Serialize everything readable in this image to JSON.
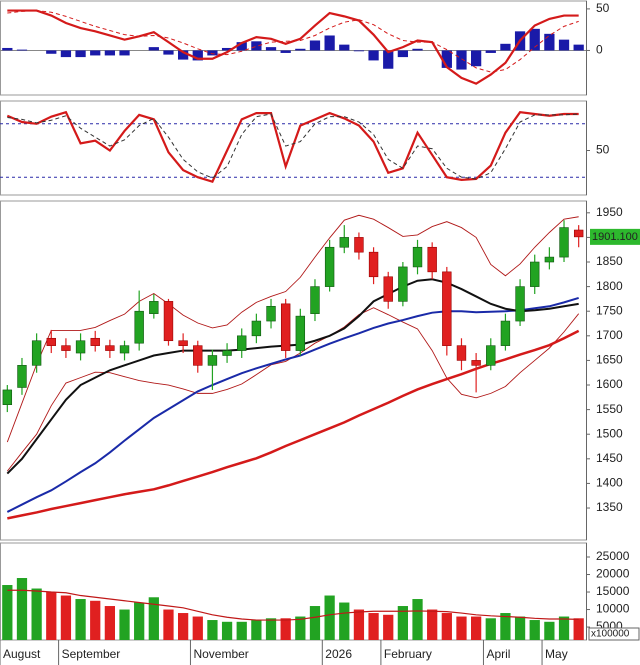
{
  "chart_data": [
    {
      "type": "macd",
      "ylim": [
        -53.6,
        59.5
      ],
      "yticks": [
        0,
        50
      ],
      "series": [
        {
          "color": "#d41a1a",
          "style": "solid",
          "values": [
            48,
            48,
            48,
            42,
            33,
            27,
            23,
            18,
            13,
            17,
            22,
            10,
            -2,
            -10,
            -10,
            -2,
            9,
            16,
            14,
            8,
            14,
            30,
            45,
            41,
            36,
            19,
            -2,
            4,
            12,
            10,
            -20,
            -33,
            -40,
            -29,
            -15,
            12,
            30,
            38,
            42,
            42
          ]
        },
        {
          "color": "#d41a1a",
          "style": "dashed",
          "values": [
            45,
            47,
            48,
            46,
            41,
            35,
            29,
            24,
            19,
            17,
            18,
            15,
            9,
            2,
            -4,
            -5,
            -1,
            5,
            10,
            11,
            12,
            18,
            27,
            34,
            37,
            31,
            20,
            12,
            10,
            10,
            1,
            -10,
            -21,
            -26,
            -23,
            -11,
            4,
            18,
            29,
            35
          ]
        }
      ],
      "histogram": {
        "color": "#1a1aa8",
        "values": [
          3,
          1,
          0,
          -4,
          -8,
          -8,
          -6,
          -6,
          -6,
          0,
          4,
          -5,
          -11,
          -12,
          -6,
          3,
          10,
          11,
          4,
          -3,
          2,
          12,
          18,
          7,
          -1,
          -12,
          -22,
          -8,
          2,
          0,
          -21,
          -23,
          -19,
          -3,
          8,
          23,
          26,
          20,
          13,
          7
        ]
      }
    },
    {
      "type": "line",
      "ylim": [
        0,
        105.6
      ],
      "yticks": [
        50
      ],
      "levels": [
        80,
        20
      ],
      "level_color": "#2a2aa8",
      "series": [
        {
          "color": "#d41a1a",
          "style": "solid",
          "values": [
            89,
            82,
            80,
            88,
            93,
            58,
            61,
            50,
            72,
            90,
            85,
            48,
            28,
            20,
            15,
            50,
            85,
            92,
            92,
            32,
            78,
            85,
            92,
            86,
            78,
            60,
            25,
            30,
            70,
            45,
            20,
            17,
            18,
            33,
            70,
            93,
            91,
            89,
            91,
            91
          ]
        },
        {
          "color": "#333333",
          "style": "dashed",
          "values": [
            87,
            85,
            81,
            84,
            89,
            75,
            65,
            55,
            62,
            78,
            86,
            65,
            40,
            26,
            19,
            32,
            68,
            88,
            91,
            55,
            60,
            80,
            88,
            88,
            82,
            68,
            40,
            30,
            55,
            52,
            30,
            20,
            18,
            25,
            52,
            82,
            90,
            90,
            90,
            91
          ]
        }
      ]
    },
    {
      "type": "candlestick",
      "ylim": [
        1285,
        1974
      ],
      "yticks": [
        1350,
        1400,
        1450,
        1500,
        1550,
        1600,
        1650,
        1700,
        1750,
        1800,
        1850,
        1900,
        1950
      ],
      "up_color": "#22a322",
      "down_color": "#e02020",
      "open": [
        1560,
        1595,
        1640,
        1695,
        1680,
        1665,
        1695,
        1680,
        1665,
        1685,
        1745,
        1770,
        1690,
        1680,
        1640,
        1660,
        1670,
        1700,
        1730,
        1765,
        1670,
        1745,
        1800,
        1880,
        1900,
        1870,
        1820,
        1770,
        1840,
        1880,
        1830,
        1680,
        1650,
        1640,
        1680,
        1730,
        1800,
        1850,
        1860,
        1915
      ],
      "high": [
        1600,
        1655,
        1705,
        1712,
        1695,
        1705,
        1710,
        1692,
        1690,
        1792,
        1785,
        1775,
        1705,
        1690,
        1672,
        1685,
        1715,
        1745,
        1775,
        1775,
        1755,
        1815,
        1895,
        1925,
        1910,
        1880,
        1830,
        1850,
        1895,
        1890,
        1840,
        1695,
        1665,
        1695,
        1745,
        1815,
        1865,
        1880,
        1935,
        1925
      ],
      "low": [
        1545,
        1580,
        1625,
        1665,
        1655,
        1650,
        1668,
        1655,
        1650,
        1670,
        1735,
        1680,
        1665,
        1625,
        1590,
        1645,
        1655,
        1685,
        1715,
        1655,
        1660,
        1730,
        1790,
        1868,
        1855,
        1805,
        1755,
        1760,
        1825,
        1815,
        1660,
        1630,
        1585,
        1630,
        1670,
        1720,
        1785,
        1835,
        1850,
        1880
      ],
      "close": [
        1590,
        1640,
        1690,
        1680,
        1670,
        1690,
        1680,
        1670,
        1680,
        1750,
        1770,
        1690,
        1680,
        1640,
        1660,
        1670,
        1700,
        1730,
        1760,
        1670,
        1740,
        1800,
        1880,
        1900,
        1870,
        1820,
        1770,
        1840,
        1880,
        1830,
        1680,
        1650,
        1640,
        1680,
        1730,
        1800,
        1850,
        1860,
        1920,
        1901.1
      ],
      "last_close": {
        "value": 1901.1,
        "label": "1901.100",
        "color": "#2db82d"
      },
      "series": [
        {
          "color": "#b01818",
          "width": 0.9,
          "values": [
            1484,
            1563,
            1642,
            1711,
            1711,
            1711,
            1717,
            1731,
            1744,
            1770,
            1786,
            1765,
            1742,
            1726,
            1716,
            1722,
            1748,
            1768,
            1780,
            1790,
            1819,
            1860,
            1899,
            1935,
            1945,
            1937,
            1920,
            1902,
            1905,
            1922,
            1932,
            1920,
            1900,
            1845,
            1822,
            1846,
            1880,
            1910,
            1937,
            1942
          ]
        },
        {
          "color": "#b01818",
          "width": 0.9,
          "values": [
            1425,
            1463,
            1500,
            1558,
            1604,
            1615,
            1626,
            1625,
            1617,
            1609,
            1604,
            1600,
            1592,
            1583,
            1583,
            1591,
            1602,
            1621,
            1641,
            1648,
            1665,
            1685,
            1700,
            1718,
            1743,
            1757,
            1743,
            1728,
            1714,
            1670,
            1614,
            1581,
            1574,
            1583,
            1597,
            1625,
            1650,
            1675,
            1708,
            1745
          ]
        },
        {
          "color": "#d41a1a",
          "width": 2.5,
          "values": [
            1329,
            1335,
            1341,
            1348,
            1354,
            1360,
            1366,
            1372,
            1378,
            1383,
            1388,
            1396,
            1405,
            1414,
            1423,
            1433,
            1442,
            1451,
            1463,
            1476,
            1488,
            1500,
            1512,
            1524,
            1538,
            1551,
            1564,
            1578,
            1591,
            1602,
            1612,
            1622,
            1633,
            1643,
            1652,
            1662,
            1671,
            1681,
            1695,
            1710
          ]
        },
        {
          "color": "#1a2aa8",
          "width": 2,
          "values": [
            1342,
            1357,
            1372,
            1386,
            1404,
            1423,
            1441,
            1463,
            1487,
            1510,
            1533,
            1551,
            1569,
            1587,
            1600,
            1612,
            1624,
            1634,
            1643,
            1652,
            1660,
            1672,
            1684,
            1695,
            1705,
            1716,
            1725,
            1732,
            1740,
            1747,
            1750,
            1750,
            1748,
            1749,
            1750,
            1752,
            1756,
            1760,
            1768,
            1777
          ]
        },
        {
          "color": "#111111",
          "width": 2,
          "values": [
            1420,
            1450,
            1490,
            1530,
            1570,
            1600,
            1615,
            1630,
            1640,
            1650,
            1660,
            1665,
            1670,
            1670,
            1670,
            1670,
            1672,
            1675,
            1678,
            1680,
            1682,
            1690,
            1700,
            1715,
            1740,
            1770,
            1785,
            1800,
            1812,
            1815,
            1808,
            1795,
            1780,
            1765,
            1755,
            1750,
            1752,
            1755,
            1760,
            1765
          ]
        }
      ]
    },
    {
      "type": "bar",
      "ylim": [
        1300,
        29000
      ],
      "yticks": [
        5000,
        10000,
        15000,
        20000,
        25000
      ],
      "unit_label": "x100000",
      "up_color": "#22a322",
      "down_color": "#e02020",
      "categories": [
        "August",
        null,
        null,
        null,
        "September",
        null,
        null,
        null,
        null,
        null,
        null,
        null,
        null,
        "November",
        null,
        null,
        null,
        null,
        null,
        null,
        null,
        null,
        "2026",
        null,
        null,
        null,
        "February",
        null,
        null,
        null,
        null,
        null,
        null,
        "April",
        null,
        null,
        null,
        "May",
        null,
        null
      ],
      "values": [
        17000,
        19000,
        16000,
        15000,
        14000,
        13000,
        12500,
        11000,
        10000,
        12000,
        13500,
        10000,
        9000,
        8000,
        7000,
        6500,
        6500,
        7000,
        7500,
        7500,
        8000,
        11000,
        14000,
        12000,
        10000,
        9000,
        8500,
        11000,
        13000,
        10000,
        9000,
        8000,
        8000,
        7500,
        9000,
        8000,
        7000,
        6500,
        8000,
        7500
      ],
      "series": [
        {
          "color": "#c01818",
          "values": [
            15500,
            15500,
            15300,
            15000,
            14800,
            14000,
            13500,
            13000,
            12500,
            12000,
            11500,
            11000,
            10500,
            9500,
            8500,
            7800,
            7300,
            7000,
            7000,
            7000,
            7200,
            7800,
            8500,
            9000,
            9300,
            9500,
            9500,
            9500,
            9600,
            9500,
            9400,
            9000,
            8500,
            8200,
            8000,
            7800,
            7500,
            7300,
            7300,
            7200
          ]
        }
      ]
    }
  ]
}
